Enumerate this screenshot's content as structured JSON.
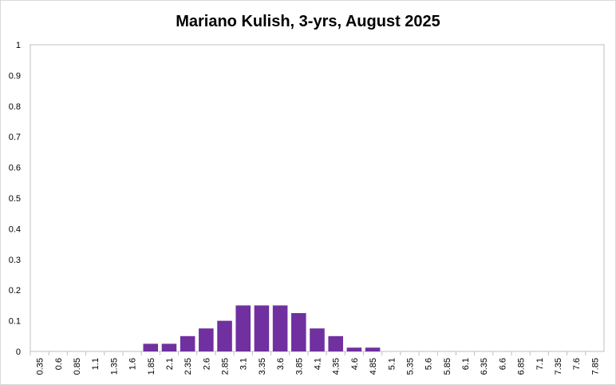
{
  "chart_data": {
    "type": "bar",
    "title": "Mariano Kulish, 3-yrs, August 2025",
    "xlabel": "",
    "ylabel": "",
    "ylim": [
      0,
      1
    ],
    "yticks": [
      "0",
      "0.1",
      "0.2",
      "0.3",
      "0.4",
      "0.5",
      "0.6",
      "0.7",
      "0.8",
      "0.9",
      "1"
    ],
    "grid": false,
    "legend": "none",
    "bar_color": "#7030a0",
    "categories": [
      "0.35",
      "0.6",
      "0.85",
      "1.1",
      "1.35",
      "1.6",
      "1.85",
      "2.1",
      "2.35",
      "2.6",
      "2.85",
      "3.1",
      "3.35",
      "3.6",
      "3.85",
      "4.1",
      "4.35",
      "4.6",
      "4.85",
      "5.1",
      "5.35",
      "5.6",
      "5.85",
      "6.1",
      "6.35",
      "6.6",
      "6.85",
      "7.1",
      "7.35",
      "7.6",
      "7.85"
    ],
    "values": [
      0,
      0,
      0,
      0,
      0,
      0,
      0.025,
      0.025,
      0.05,
      0.075,
      0.1,
      0.15,
      0.15,
      0.15,
      0.125,
      0.075,
      0.05,
      0.0125,
      0.0125,
      0,
      0,
      0,
      0,
      0,
      0,
      0,
      0,
      0,
      0,
      0,
      0
    ]
  }
}
